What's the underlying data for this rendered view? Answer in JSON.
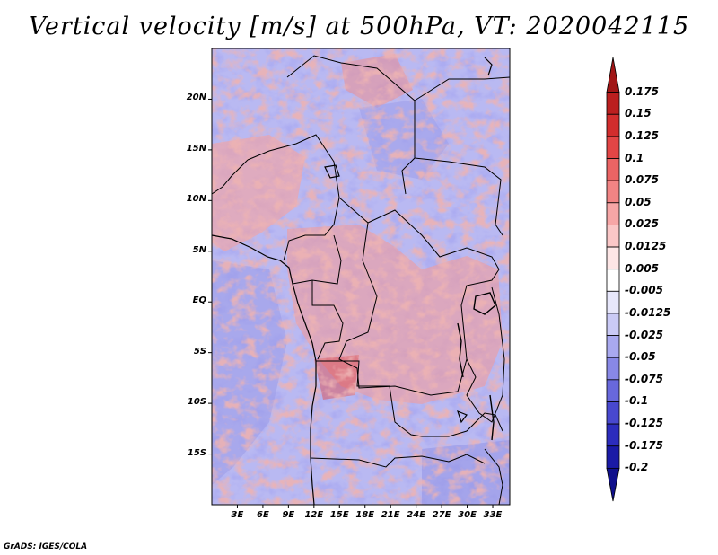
{
  "title": "Vertical velocity [m/s] at 500hPa, VT: 2020042115",
  "credit": "GrADS: IGES/COLA",
  "map": {
    "variable": "Vertical velocity",
    "units": "m/s",
    "level": "500hPa",
    "valid_time": "2020042115",
    "region": "Central Africa",
    "lat_range": [
      -20,
      25
    ],
    "lon_range": [
      0,
      35
    ],
    "lat_labels": [
      "20N",
      "15N",
      "10N",
      "5N",
      "EQ",
      "5S",
      "10S",
      "15S"
    ],
    "lat_values": [
      20,
      15,
      10,
      5,
      0,
      -5,
      -10,
      -15
    ],
    "lon_labels": [
      "3E",
      "6E",
      "9E",
      "12E",
      "15E",
      "18E",
      "21E",
      "24E",
      "27E",
      "30E",
      "33E"
    ],
    "lon_values": [
      3,
      6,
      9,
      12,
      15,
      18,
      21,
      24,
      27,
      30,
      33
    ]
  },
  "colorbar": {
    "labels": [
      "0.175",
      "0.15",
      "0.125",
      "0.1",
      "0.075",
      "0.05",
      "0.025",
      "0.0125",
      "0.005",
      "-0.005",
      "-0.0125",
      "-0.025",
      "-0.05",
      "-0.075",
      "-0.1",
      "-0.125",
      "-0.175",
      "-0.2"
    ],
    "colors": [
      "#a11616",
      "#bb1f1f",
      "#d22d2d",
      "#e24545",
      "#eb6464",
      "#f18484",
      "#f6a6a6",
      "#fac7c7",
      "#fde6e6",
      "#ffffff",
      "#e7e7fb",
      "#cacaf6",
      "#a9a9ef",
      "#8888e6",
      "#6868dc",
      "#4848cf",
      "#2c2cbd",
      "#1a1aa6",
      "#10108c"
    ]
  }
}
